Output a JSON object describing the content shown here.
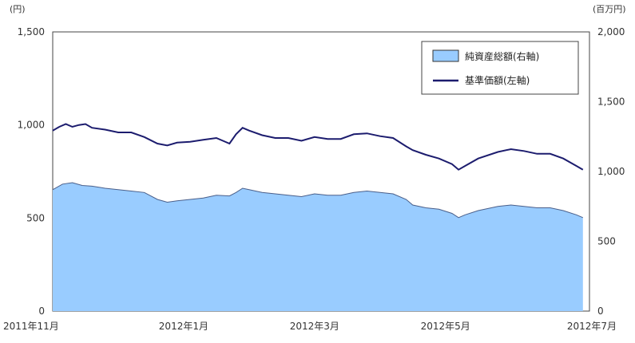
{
  "chart_data": {
    "type": "area",
    "y_left": {
      "unit": "(円)",
      "ticks": [
        "1,500",
        "1,000",
        "500",
        "0"
      ],
      "range": [
        0,
        1500
      ]
    },
    "y_right": {
      "unit": "(百万円)",
      "ticks": [
        "2,000",
        "1,500",
        "1,000",
        "500",
        "0"
      ],
      "range": [
        0,
        2000
      ]
    },
    "x_ticks": [
      "2011年11月",
      "2012年1月",
      "2012年3月",
      "2012年5月",
      "2012年7月"
    ],
    "x_tick_index": [
      0,
      2,
      4,
      6,
      8
    ],
    "x_range": [
      0,
      8.2
    ],
    "legend": {
      "position": "top-right"
    },
    "series": [
      {
        "name": "純資産総額(右軸)",
        "kind": "area",
        "axis": "right",
        "color": "#99ccff",
        "edge_color": "#4a5f8a",
        "points": [
          [
            0,
            870
          ],
          [
            0.15,
            910
          ],
          [
            0.3,
            920
          ],
          [
            0.45,
            900
          ],
          [
            0.6,
            895
          ],
          [
            0.8,
            880
          ],
          [
            1.0,
            870
          ],
          [
            1.2,
            860
          ],
          [
            1.4,
            850
          ],
          [
            1.6,
            800
          ],
          [
            1.75,
            780
          ],
          [
            1.9,
            790
          ],
          [
            2.1,
            800
          ],
          [
            2.3,
            810
          ],
          [
            2.5,
            830
          ],
          [
            2.7,
            825
          ],
          [
            2.8,
            850
          ],
          [
            2.9,
            880
          ],
          [
            3.0,
            870
          ],
          [
            3.2,
            850
          ],
          [
            3.4,
            840
          ],
          [
            3.6,
            830
          ],
          [
            3.8,
            820
          ],
          [
            4.0,
            840
          ],
          [
            4.2,
            830
          ],
          [
            4.4,
            830
          ],
          [
            4.6,
            850
          ],
          [
            4.8,
            860
          ],
          [
            5.0,
            850
          ],
          [
            5.2,
            840
          ],
          [
            5.4,
            800
          ],
          [
            5.5,
            760
          ],
          [
            5.7,
            740
          ],
          [
            5.9,
            730
          ],
          [
            6.1,
            700
          ],
          [
            6.2,
            670
          ],
          [
            6.3,
            690
          ],
          [
            6.5,
            720
          ],
          [
            6.8,
            750
          ],
          [
            7.0,
            760
          ],
          [
            7.2,
            750
          ],
          [
            7.4,
            740
          ],
          [
            7.6,
            740
          ],
          [
            7.8,
            720
          ],
          [
            8.0,
            690
          ],
          [
            8.1,
            670
          ]
        ]
      },
      {
        "name": "基準価額(左軸)",
        "kind": "line",
        "axis": "left",
        "color": "#1c1c6e",
        "points": [
          [
            0,
            970
          ],
          [
            0.1,
            990
          ],
          [
            0.2,
            1005
          ],
          [
            0.3,
            990
          ],
          [
            0.4,
            1000
          ],
          [
            0.5,
            1005
          ],
          [
            0.6,
            985
          ],
          [
            0.8,
            975
          ],
          [
            1.0,
            960
          ],
          [
            1.2,
            960
          ],
          [
            1.4,
            935
          ],
          [
            1.6,
            900
          ],
          [
            1.75,
            890
          ],
          [
            1.9,
            905
          ],
          [
            2.1,
            910
          ],
          [
            2.3,
            920
          ],
          [
            2.5,
            930
          ],
          [
            2.6,
            915
          ],
          [
            2.7,
            900
          ],
          [
            2.8,
            950
          ],
          [
            2.9,
            985
          ],
          [
            3.0,
            970
          ],
          [
            3.2,
            945
          ],
          [
            3.4,
            930
          ],
          [
            3.6,
            930
          ],
          [
            3.8,
            915
          ],
          [
            4.0,
            935
          ],
          [
            4.2,
            925
          ],
          [
            4.4,
            925
          ],
          [
            4.6,
            950
          ],
          [
            4.8,
            955
          ],
          [
            5.0,
            940
          ],
          [
            5.2,
            930
          ],
          [
            5.4,
            885
          ],
          [
            5.5,
            865
          ],
          [
            5.7,
            840
          ],
          [
            5.9,
            820
          ],
          [
            6.1,
            790
          ],
          [
            6.2,
            760
          ],
          [
            6.3,
            780
          ],
          [
            6.5,
            820
          ],
          [
            6.8,
            855
          ],
          [
            7.0,
            870
          ],
          [
            7.2,
            860
          ],
          [
            7.4,
            845
          ],
          [
            7.6,
            845
          ],
          [
            7.8,
            820
          ],
          [
            8.0,
            780
          ],
          [
            8.1,
            760
          ]
        ]
      }
    ]
  }
}
